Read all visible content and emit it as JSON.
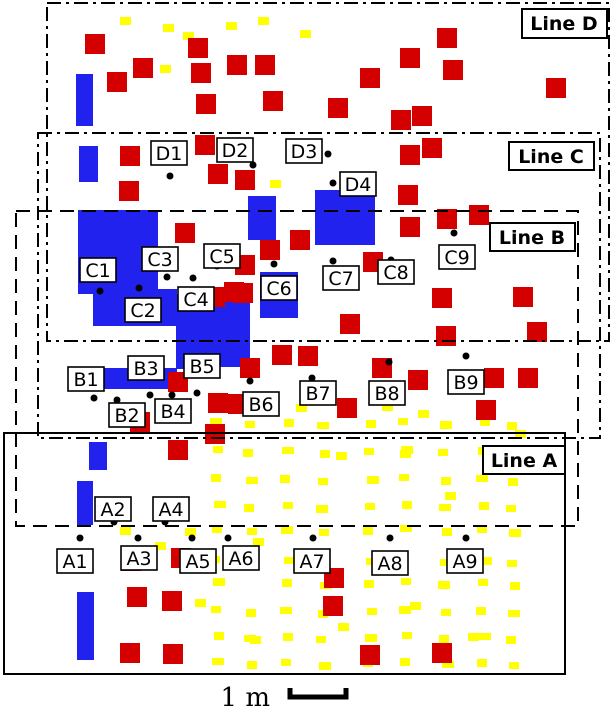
{
  "colors": {
    "obstacle_red": "#d40000",
    "marker_yellow": "#ffff00",
    "block_blue": "#2222ee",
    "sensor_black": "#000000"
  },
  "line_labels": [
    "Line A",
    "Line B",
    "Line C",
    "Line D"
  ],
  "scale_bar": {
    "label": "1 m"
  },
  "sensors": {
    "A": [
      "A1",
      "A2",
      "A3",
      "A4",
      "A5",
      "A6",
      "A7",
      "A8",
      "A9"
    ],
    "B": [
      "B1",
      "B2",
      "B3",
      "B4",
      "B5",
      "B6",
      "B7",
      "B8",
      "B9"
    ],
    "C": [
      "C1",
      "C2",
      "C3",
      "C4",
      "C5",
      "C6",
      "C7",
      "C8",
      "C9"
    ],
    "D": [
      "D1",
      "D2",
      "D3",
      "D4"
    ]
  }
}
